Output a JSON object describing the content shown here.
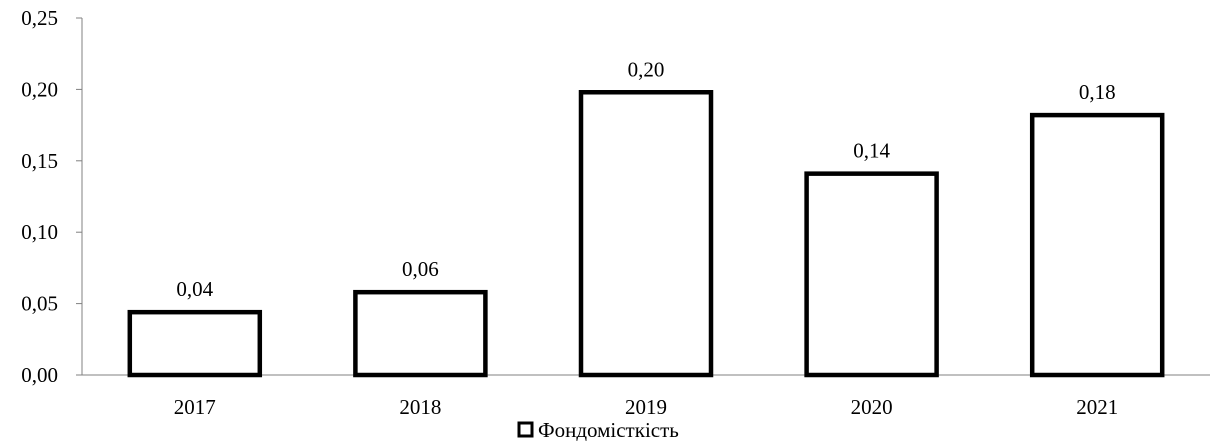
{
  "chart_data": {
    "type": "bar",
    "categories": [
      "2017",
      "2018",
      "2019",
      "2020",
      "2021"
    ],
    "series": [
      {
        "name": "Фондомісткість",
        "values": [
          0.044,
          0.058,
          0.198,
          0.141,
          0.182
        ]
      }
    ],
    "data_labels": [
      "0,04",
      "0,06",
      "0,20",
      "0,14",
      "0,18"
    ],
    "y_tick_labels": [
      "0,00",
      "0,05",
      "0,10",
      "0,15",
      "0,20",
      "0,25"
    ],
    "y_ticks": [
      0,
      0.05,
      0.1,
      0.15,
      0.2,
      0.25
    ],
    "ylim": [
      0,
      0.25
    ],
    "grid": false,
    "legend_position": "bottom",
    "bar_fill": "#ffffff",
    "bar_stroke": "#000000",
    "axis_color": "#808080"
  }
}
